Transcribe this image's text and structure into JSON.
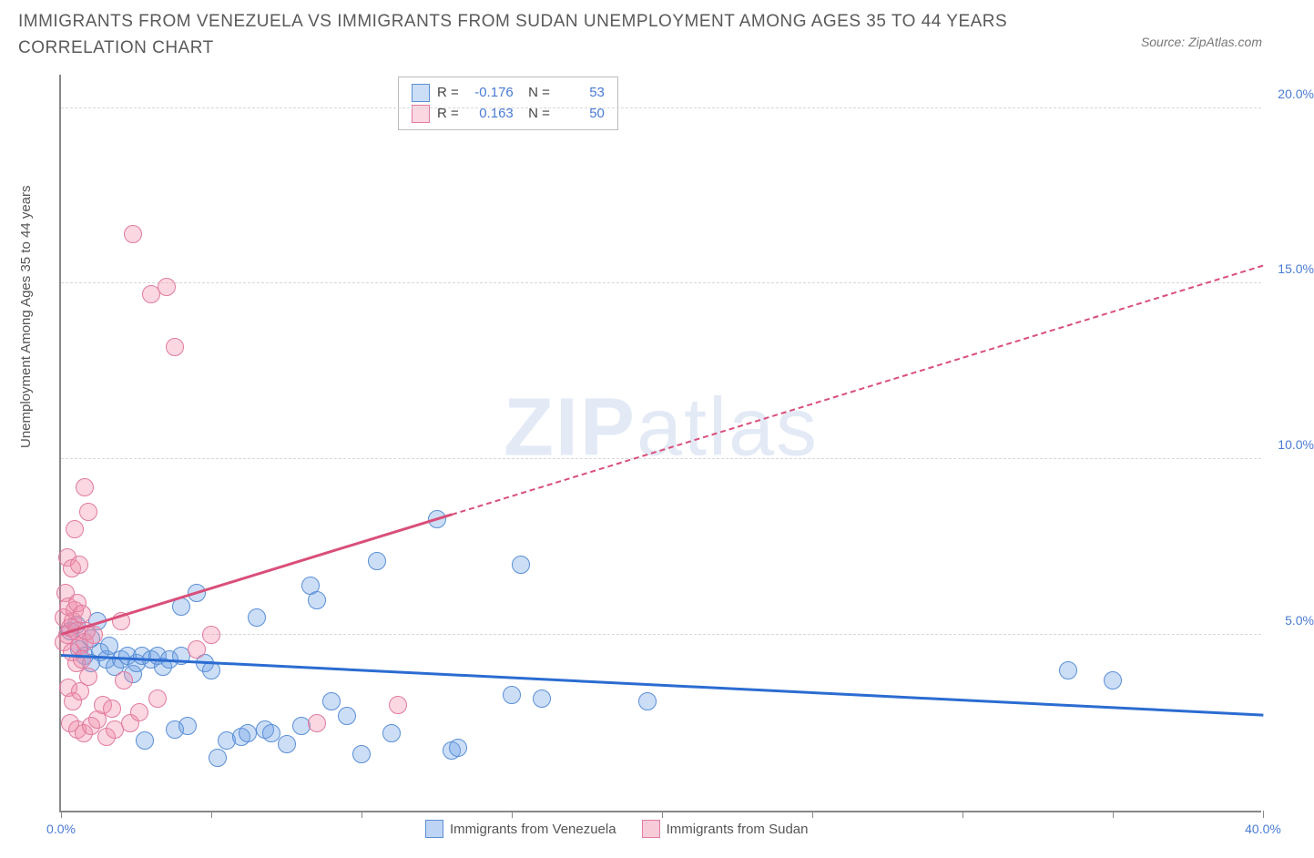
{
  "title": "IMMIGRANTS FROM VENEZUELA VS IMMIGRANTS FROM SUDAN UNEMPLOYMENT AMONG AGES 35 TO 44 YEARS CORRELATION CHART",
  "source": "Source: ZipAtlas.com",
  "watermark_bold": "ZIP",
  "watermark_light": "atlas",
  "chart": {
    "type": "scatter",
    "y_axis_label": "Unemployment Among Ages 35 to 44 years",
    "xlim": [
      0,
      40
    ],
    "ylim": [
      0,
      21
    ],
    "y_gridlines": [
      5,
      10,
      15,
      20
    ],
    "y_tick_labels": [
      "5.0%",
      "10.0%",
      "15.0%",
      "20.0%"
    ],
    "x_ticks": [
      0,
      5,
      10,
      15,
      20,
      25,
      30,
      35,
      40
    ],
    "x_tick_labels_shown": {
      "0": "0.0%",
      "40": "40.0%"
    },
    "tick_label_color": "#4a7bd4",
    "grid_color": "#d8d8d8",
    "axis_color": "#888888",
    "background_color": "#ffffff",
    "point_radius": 10,
    "series": [
      {
        "name": "Immigrants from Venezuela",
        "fill": "rgba(110,160,230,0.35)",
        "stroke": "#5a8fd6",
        "trend_color": "#2b6cd1",
        "R": "-0.176",
        "N": "53",
        "trend": {
          "x1": 0,
          "y1": 4.4,
          "x2": 40,
          "y2": 2.7,
          "solid_until_x": 40
        },
        "points": [
          [
            0.3,
            5.1
          ],
          [
            0.5,
            5.3
          ],
          [
            0.6,
            4.6
          ],
          [
            0.8,
            4.4
          ],
          [
            1.0,
            4.9
          ],
          [
            1.0,
            4.2
          ],
          [
            1.2,
            5.4
          ],
          [
            1.3,
            4.5
          ],
          [
            1.5,
            4.3
          ],
          [
            1.6,
            4.7
          ],
          [
            1.8,
            4.1
          ],
          [
            2.0,
            4.3
          ],
          [
            2.2,
            4.4
          ],
          [
            2.4,
            3.9
          ],
          [
            2.5,
            4.2
          ],
          [
            2.7,
            4.4
          ],
          [
            2.8,
            2.0
          ],
          [
            3.0,
            4.3
          ],
          [
            3.2,
            4.4
          ],
          [
            3.4,
            4.1
          ],
          [
            3.6,
            4.3
          ],
          [
            3.8,
            2.3
          ],
          [
            4.0,
            4.4
          ],
          [
            4.0,
            5.8
          ],
          [
            4.2,
            2.4
          ],
          [
            4.5,
            6.2
          ],
          [
            4.8,
            4.2
          ],
          [
            5.0,
            4.0
          ],
          [
            5.2,
            1.5
          ],
          [
            5.5,
            2.0
          ],
          [
            6.0,
            2.1
          ],
          [
            6.2,
            2.2
          ],
          [
            6.5,
            5.5
          ],
          [
            6.8,
            2.3
          ],
          [
            7.0,
            2.2
          ],
          [
            7.5,
            1.9
          ],
          [
            8.0,
            2.4
          ],
          [
            8.3,
            6.4
          ],
          [
            8.5,
            6.0
          ],
          [
            9.0,
            3.1
          ],
          [
            9.5,
            2.7
          ],
          [
            10.0,
            1.6
          ],
          [
            10.5,
            7.1
          ],
          [
            11.0,
            2.2
          ],
          [
            12.5,
            8.3
          ],
          [
            13.0,
            1.7
          ],
          [
            13.2,
            1.8
          ],
          [
            15.0,
            3.3
          ],
          [
            15.3,
            7.0
          ],
          [
            16.0,
            3.2
          ],
          [
            19.5,
            3.1
          ],
          [
            33.5,
            4.0
          ],
          [
            35.0,
            3.7
          ]
        ]
      },
      {
        "name": "Immigrants from Sudan",
        "fill": "rgba(240,140,170,0.35)",
        "stroke": "#e17ba0",
        "trend_color": "#d94f7a",
        "R": "0.163",
        "N": "50",
        "trend": {
          "x1": 0,
          "y1": 5.0,
          "x2": 40,
          "y2": 15.5,
          "solid_until_x": 13
        },
        "points": [
          [
            0.1,
            4.8
          ],
          [
            0.1,
            5.5
          ],
          [
            0.15,
            6.2
          ],
          [
            0.2,
            5.0
          ],
          [
            0.2,
            7.2
          ],
          [
            0.25,
            3.5
          ],
          [
            0.25,
            5.8
          ],
          [
            0.3,
            2.5
          ],
          [
            0.3,
            5.2
          ],
          [
            0.35,
            4.5
          ],
          [
            0.35,
            6.9
          ],
          [
            0.4,
            3.1
          ],
          [
            0.4,
            5.4
          ],
          [
            0.45,
            5.7
          ],
          [
            0.45,
            8.0
          ],
          [
            0.5,
            4.2
          ],
          [
            0.5,
            5.1
          ],
          [
            0.55,
            2.3
          ],
          [
            0.55,
            5.9
          ],
          [
            0.6,
            4.7
          ],
          [
            0.6,
            7.0
          ],
          [
            0.65,
            3.4
          ],
          [
            0.7,
            4.3
          ],
          [
            0.7,
            5.6
          ],
          [
            0.75,
            2.2
          ],
          [
            0.8,
            4.8
          ],
          [
            0.8,
            9.2
          ],
          [
            0.85,
            5.1
          ],
          [
            0.9,
            3.8
          ],
          [
            0.9,
            8.5
          ],
          [
            1.0,
            2.4
          ],
          [
            1.1,
            5.0
          ],
          [
            1.2,
            2.6
          ],
          [
            1.4,
            3.0
          ],
          [
            1.5,
            2.1
          ],
          [
            1.7,
            2.9
          ],
          [
            1.8,
            2.3
          ],
          [
            2.0,
            5.4
          ],
          [
            2.1,
            3.7
          ],
          [
            2.3,
            2.5
          ],
          [
            2.4,
            16.4
          ],
          [
            2.6,
            2.8
          ],
          [
            3.0,
            14.7
          ],
          [
            3.2,
            3.2
          ],
          [
            3.5,
            14.9
          ],
          [
            3.8,
            13.2
          ],
          [
            4.5,
            4.6
          ],
          [
            5.0,
            5.0
          ],
          [
            8.5,
            2.5
          ],
          [
            11.2,
            3.0
          ]
        ]
      }
    ],
    "legend_bottom": [
      {
        "label": "Immigrants from Venezuela",
        "fill": "rgba(110,160,230,0.45)",
        "stroke": "#5a8fd6"
      },
      {
        "label": "Immigrants from Sudan",
        "fill": "rgba(240,140,170,0.45)",
        "stroke": "#e17ba0"
      }
    ]
  }
}
